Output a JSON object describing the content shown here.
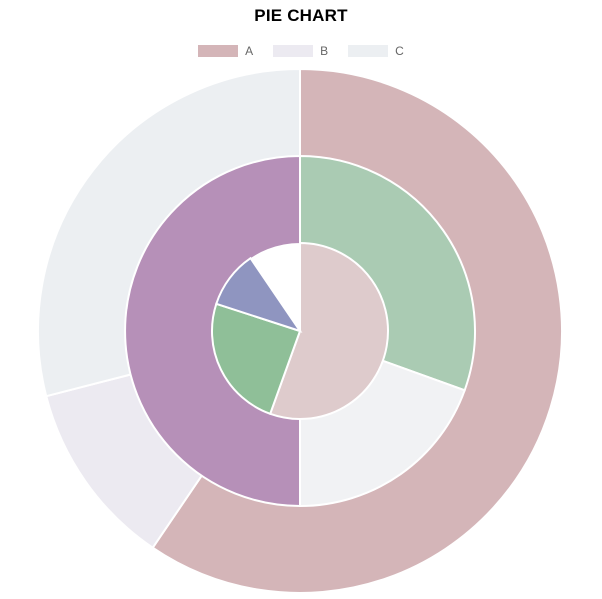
{
  "chart_data": {
    "type": "pie",
    "title": "PIE CHART",
    "legend": {
      "placement": "top-center",
      "entries": [
        {
          "label": "A",
          "color": "#d4b5b8"
        },
        {
          "label": "B",
          "color": "#eceaf1"
        },
        {
          "label": "C",
          "color": "#eceff2"
        }
      ]
    },
    "series": [
      {
        "ring": "outer",
        "slices": [
          {
            "label": "A",
            "value": 59.5,
            "color": "#d4b5b8"
          },
          {
            "label": "B",
            "value": 11.5,
            "color": "#eceaf1"
          },
          {
            "label": "C",
            "value": 29.0,
            "color": "#eceff2"
          }
        ]
      },
      {
        "ring": "middle",
        "slices": [
          {
            "value": 30.5,
            "color": "#aacbb3"
          },
          {
            "value": 19.5,
            "color": "#f1f2f4"
          },
          {
            "value": 50.0,
            "color": "#b690b8"
          }
        ]
      },
      {
        "ring": "inner",
        "slices": [
          {
            "value": 55.5,
            "color": "#decbcc"
          },
          {
            "value": 24.5,
            "color": "#8fbf98"
          },
          {
            "value": 10.5,
            "color": "#8f95c0"
          }
        ]
      }
    ]
  }
}
